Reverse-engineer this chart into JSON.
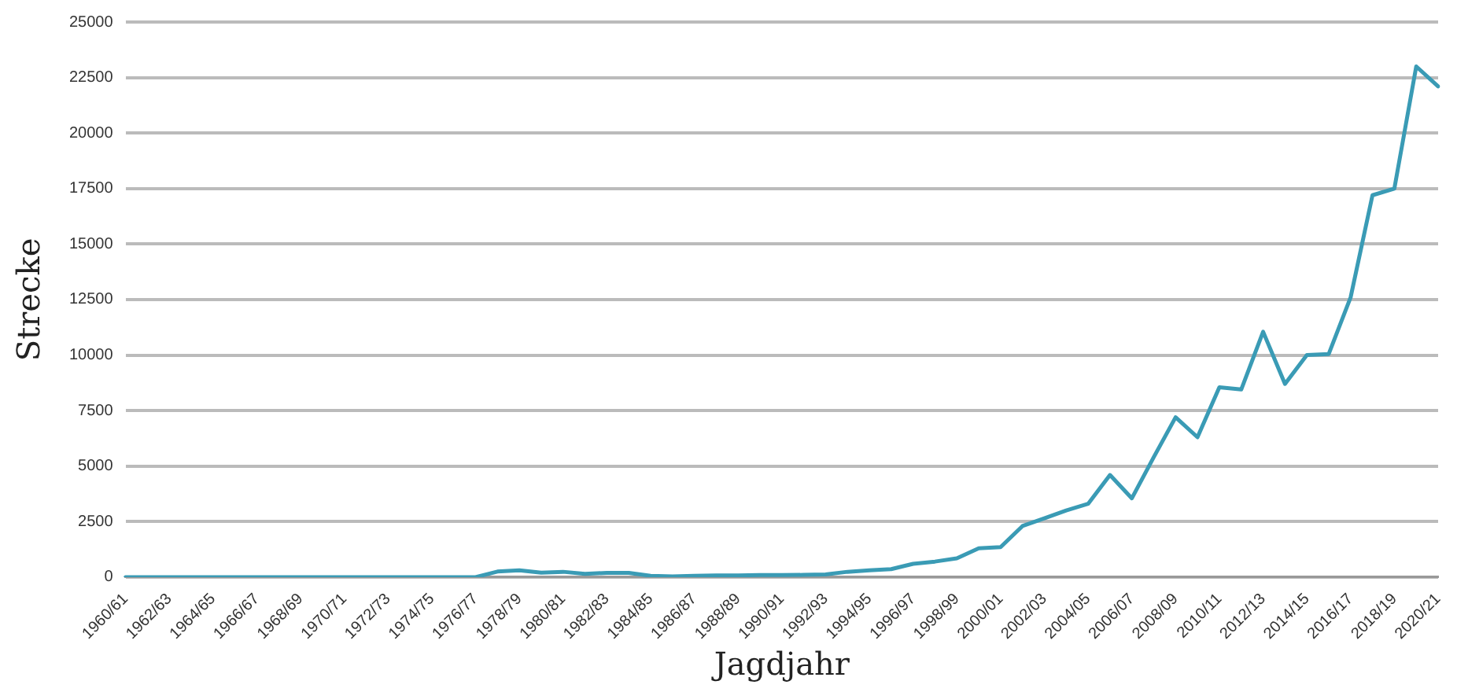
{
  "chart_data": {
    "type": "line",
    "xlabel": "Jagdjahr",
    "ylabel": "Strecke",
    "categories": [
      "1960/61",
      null,
      "1962/63",
      null,
      "1964/65",
      null,
      "1966/67",
      null,
      "1968/69",
      null,
      "1970/71",
      null,
      "1972/73",
      null,
      "1974/75",
      null,
      "1976/77",
      null,
      "1978/79",
      null,
      "1980/81",
      null,
      "1982/83",
      null,
      "1984/85",
      null,
      "1986/87",
      null,
      "1988/89",
      null,
      "1990/91",
      null,
      "1992/93",
      null,
      "1994/95",
      null,
      "1996/97",
      null,
      "1998/99",
      null,
      "2000/01",
      null,
      "2002/03",
      null,
      "2004/05",
      null,
      "2006/07",
      null,
      "2008/09",
      null,
      "2010/11",
      null,
      "2012/13",
      null,
      "2014/15",
      null,
      "2016/17",
      null,
      "2018/19",
      null,
      "2020/21"
    ],
    "series": [
      {
        "color": "#3a9bb5",
        "values": [
          0,
          0,
          0,
          0,
          0,
          0,
          0,
          0,
          0,
          0,
          0,
          0,
          0,
          0,
          0,
          0,
          0,
          250,
          310,
          200,
          240,
          150,
          190,
          190,
          60,
          30,
          60,
          80,
          80,
          90,
          90,
          100,
          120,
          240,
          310,
          360,
          600,
          700,
          850,
          1300,
          1350,
          2300,
          2650,
          3000,
          3300,
          4600,
          3550,
          5400,
          7200,
          6300,
          8550,
          8450,
          11050,
          8700,
          10000,
          10050,
          12600,
          17200,
          17500,
          23000,
          22100
        ]
      }
    ],
    "ylim": [
      0,
      25000
    ],
    "yticks": [
      0,
      2500,
      5000,
      7500,
      10000,
      12500,
      15000,
      17500,
      20000,
      22500,
      25000
    ],
    "grid": "y",
    "legend": false,
    "marker": "none",
    "line_style": "solid"
  }
}
